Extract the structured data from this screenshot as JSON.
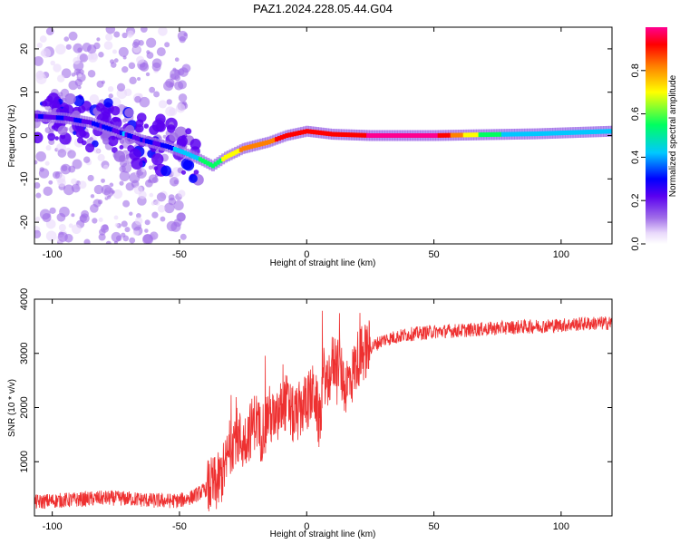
{
  "title": "PAZ1.2024.228.05.44.G04",
  "chart_data": [
    {
      "type": "heatmap",
      "xlabel": "Height of straight line (km)",
      "ylabel": "Frequency (Hz)",
      "xlim": [
        -107,
        120
      ],
      "ylim": [
        -25,
        25
      ],
      "x_ticks": [
        -100,
        -50,
        0,
        50,
        100
      ],
      "y_ticks": [
        -20,
        -10,
        0,
        10,
        20
      ],
      "colorbar": {
        "label": "Normalized spectral amplitude",
        "range": [
          0,
          1
        ],
        "ticks": [
          0.0,
          0.2,
          0.4,
          0.6,
          0.8
        ],
        "colors": [
          "#e9d9fb",
          "#a06ee8",
          "#5a00f0",
          "#0000ff",
          "#00c8ff",
          "#00ff60",
          "#ffff00",
          "#ff8000",
          "#ff0000",
          "#ff0090"
        ]
      },
      "ridge": [
        {
          "x": -107,
          "y": 4.5,
          "amp": 0.25
        },
        {
          "x": -95,
          "y": 4,
          "amp": 0.3
        },
        {
          "x": -85,
          "y": 3,
          "amp": 0.3
        },
        {
          "x": -75,
          "y": 1,
          "amp": 0.35
        },
        {
          "x": -65,
          "y": -1,
          "amp": 0.3
        },
        {
          "x": -55,
          "y": -2.5,
          "amp": 0.35
        },
        {
          "x": -48,
          "y": -4,
          "amp": 0.45
        },
        {
          "x": -42,
          "y": -5.5,
          "amp": 0.5
        },
        {
          "x": -37,
          "y": -7,
          "amp": 0.55
        },
        {
          "x": -32,
          "y": -5,
          "amp": 0.65
        },
        {
          "x": -25,
          "y": -3,
          "amp": 0.75
        },
        {
          "x": -15,
          "y": -1.5,
          "amp": 0.8
        },
        {
          "x": -8,
          "y": 0,
          "amp": 0.9
        },
        {
          "x": 0,
          "y": 1,
          "amp": 0.85
        },
        {
          "x": 10,
          "y": 0.3,
          "amp": 0.9
        },
        {
          "x": 25,
          "y": 0,
          "amp": 0.95
        },
        {
          "x": 50,
          "y": 0,
          "amp": 0.98
        },
        {
          "x": 70,
          "y": 0.2,
          "amp": 0.55
        },
        {
          "x": 90,
          "y": 0.4,
          "amp": 0.4
        },
        {
          "x": 110,
          "y": 0.8,
          "amp": 0.45
        },
        {
          "x": 120,
          "y": 1,
          "amp": 0.4
        }
      ]
    },
    {
      "type": "line",
      "xlabel": "Height of straight line (km)",
      "ylabel": "SNR (10 * v/v)",
      "xlim": [
        -107,
        120
      ],
      "ylim": [
        0,
        4000
      ],
      "x_ticks": [
        -100,
        -50,
        0,
        50,
        100
      ],
      "y_ticks": [
        1000,
        2000,
        3000,
        4000
      ],
      "color": "#ee3030",
      "series": [
        {
          "x": [
            -107,
            -100,
            -90,
            -80,
            -70,
            -60,
            -50,
            -45,
            -40,
            -35,
            -32,
            -30,
            -28,
            -25,
            -22,
            -20,
            -18,
            -15,
            -12,
            -10,
            -8,
            -5,
            -2,
            0,
            3,
            5,
            7,
            8,
            9,
            10,
            12,
            15,
            18,
            20,
            22,
            25,
            30,
            35,
            40,
            50,
            60,
            70,
            80,
            90,
            100,
            110,
            120
          ],
          "y": [
            250,
            280,
            300,
            330,
            320,
            280,
            280,
            350,
            480,
            600,
            900,
            1300,
            1500,
            1350,
            1600,
            1800,
            1500,
            1900,
            1700,
            2000,
            2100,
            1800,
            2000,
            2100,
            2300,
            1700,
            2700,
            2300,
            2600,
            2800,
            2900,
            2400,
            2600,
            2900,
            3000,
            3100,
            3250,
            3300,
            3350,
            3400,
            3420,
            3450,
            3480,
            3500,
            3520,
            3550,
            3560
          ]
        }
      ]
    }
  ]
}
